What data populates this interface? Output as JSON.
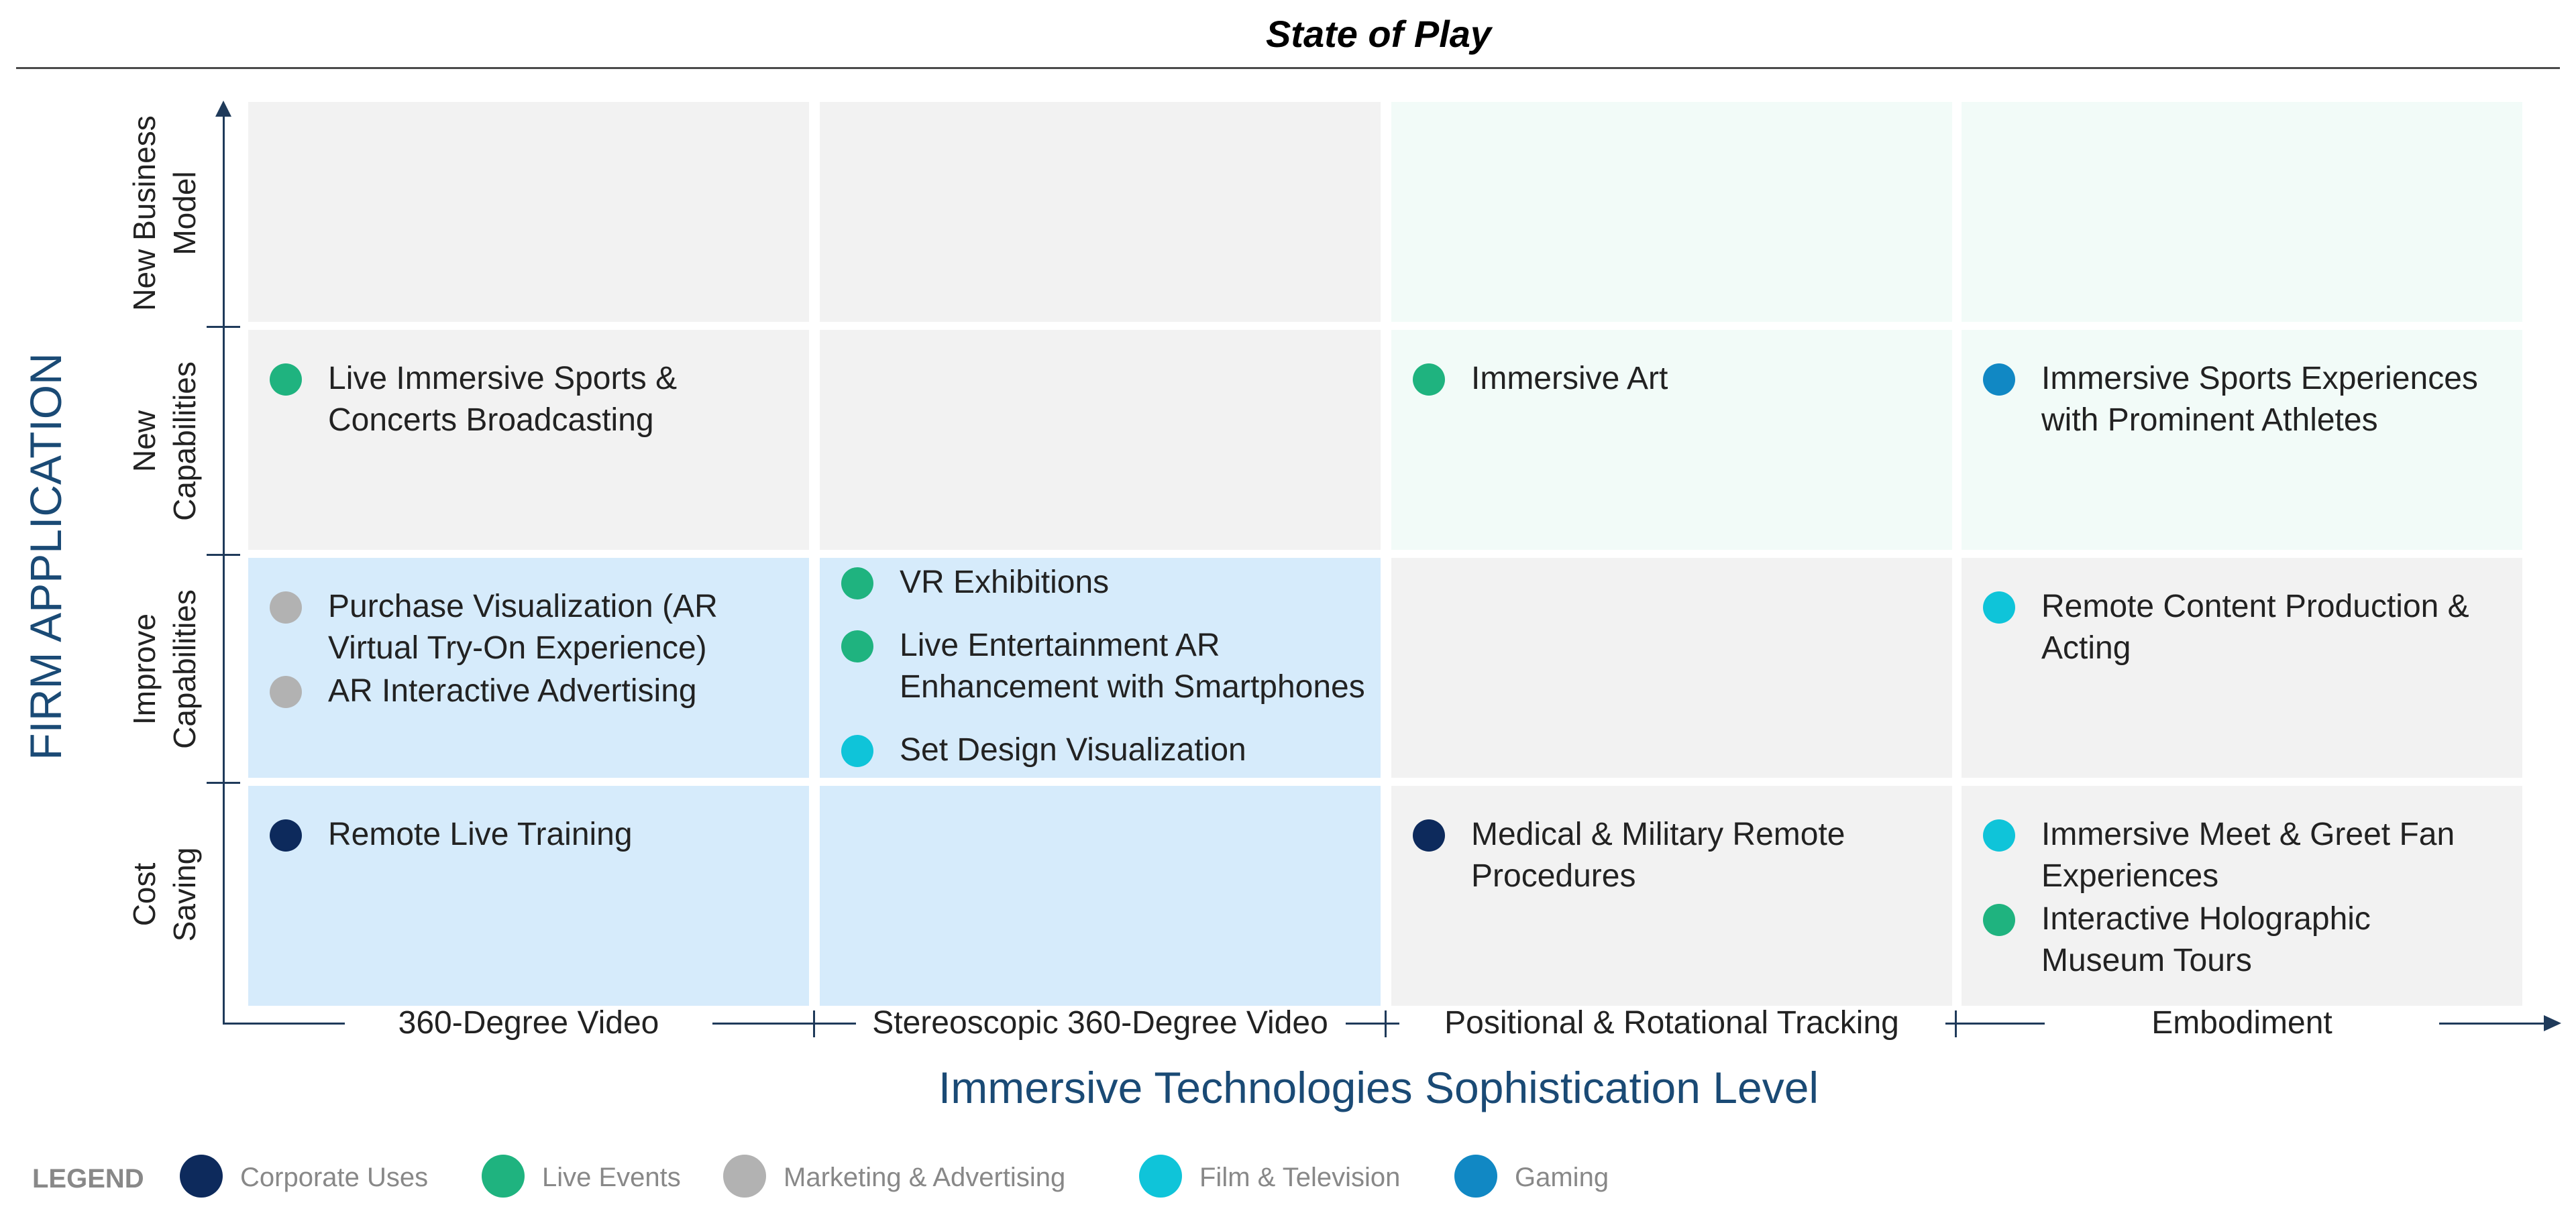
{
  "title": "State of Play",
  "y_axis": {
    "title": "FIRM APPLICATION",
    "rows": [
      "New Business\nModel",
      "New\nCapabilities",
      "Improve\nCapabilities",
      "Cost\nSaving"
    ]
  },
  "x_axis": {
    "title": "Immersive Technologies Sophistication Level",
    "columns": [
      "360-Degree Video",
      "Stereoscopic 360-Degree Video",
      "Positional & Rotational Tracking",
      "Embodiment"
    ]
  },
  "colors": {
    "corporate": "#0d2a5c",
    "live": "#1fb37f",
    "marketing": "#b2b2b2",
    "film": "#0fc4d9",
    "gaming": "#1188c4"
  },
  "cells": [
    {
      "row": 0,
      "col": 0,
      "shade": "gray",
      "items": []
    },
    {
      "row": 0,
      "col": 1,
      "shade": "gray",
      "items": []
    },
    {
      "row": 0,
      "col": 2,
      "shade": "mint",
      "items": []
    },
    {
      "row": 0,
      "col": 3,
      "shade": "mint",
      "items": []
    },
    {
      "row": 1,
      "col": 0,
      "shade": "gray",
      "items": [
        {
          "text": "Live Immersive Sports &\nConcerts Broadcasting",
          "category": "live"
        }
      ]
    },
    {
      "row": 1,
      "col": 1,
      "shade": "gray",
      "items": []
    },
    {
      "row": 1,
      "col": 2,
      "shade": "mint",
      "items": [
        {
          "text": "Immersive Art",
          "category": "live"
        }
      ]
    },
    {
      "row": 1,
      "col": 3,
      "shade": "mint",
      "items": [
        {
          "text": "Immersive Sports Experiences\nwith Prominent Athletes",
          "category": "gaming"
        }
      ]
    },
    {
      "row": 2,
      "col": 0,
      "shade": "blue",
      "items": [
        {
          "text": "Purchase Visualization (AR\nVirtual Try-On Experience)",
          "category": "marketing"
        },
        {
          "text": "AR Interactive Advertising",
          "category": "marketing"
        }
      ]
    },
    {
      "row": 2,
      "col": 1,
      "shade": "blue",
      "items": [
        {
          "text": "VR Exhibitions",
          "category": "live"
        },
        {
          "text": "Live Entertainment AR\nEnhancement with Smartphones",
          "category": "live"
        },
        {
          "text": "Set Design Visualization",
          "category": "film"
        }
      ]
    },
    {
      "row": 2,
      "col": 2,
      "shade": "gray",
      "items": []
    },
    {
      "row": 2,
      "col": 3,
      "shade": "gray",
      "items": [
        {
          "text": "Remote Content Production &\nActing",
          "category": "film"
        }
      ]
    },
    {
      "row": 3,
      "col": 0,
      "shade": "blue",
      "items": [
        {
          "text": "Remote Live Training",
          "category": "corporate"
        }
      ]
    },
    {
      "row": 3,
      "col": 1,
      "shade": "blue",
      "items": []
    },
    {
      "row": 3,
      "col": 2,
      "shade": "gray",
      "items": [
        {
          "text": "Medical & Military Remote\nProcedures",
          "category": "corporate"
        }
      ]
    },
    {
      "row": 3,
      "col": 3,
      "shade": "gray",
      "items": [
        {
          "text": "Immersive Meet & Greet Fan\nExperiences",
          "category": "film"
        },
        {
          "text": "Interactive Holographic\nMuseum Tours",
          "category": "live"
        }
      ]
    }
  ],
  "legend": {
    "label": "LEGEND",
    "items": [
      {
        "key": "corporate",
        "label": "Corporate Uses"
      },
      {
        "key": "live",
        "label": "Live Events"
      },
      {
        "key": "marketing",
        "label": "Marketing & Advertising"
      },
      {
        "key": "film",
        "label": "Film & Television"
      },
      {
        "key": "gaming",
        "label": "Gaming"
      }
    ]
  }
}
